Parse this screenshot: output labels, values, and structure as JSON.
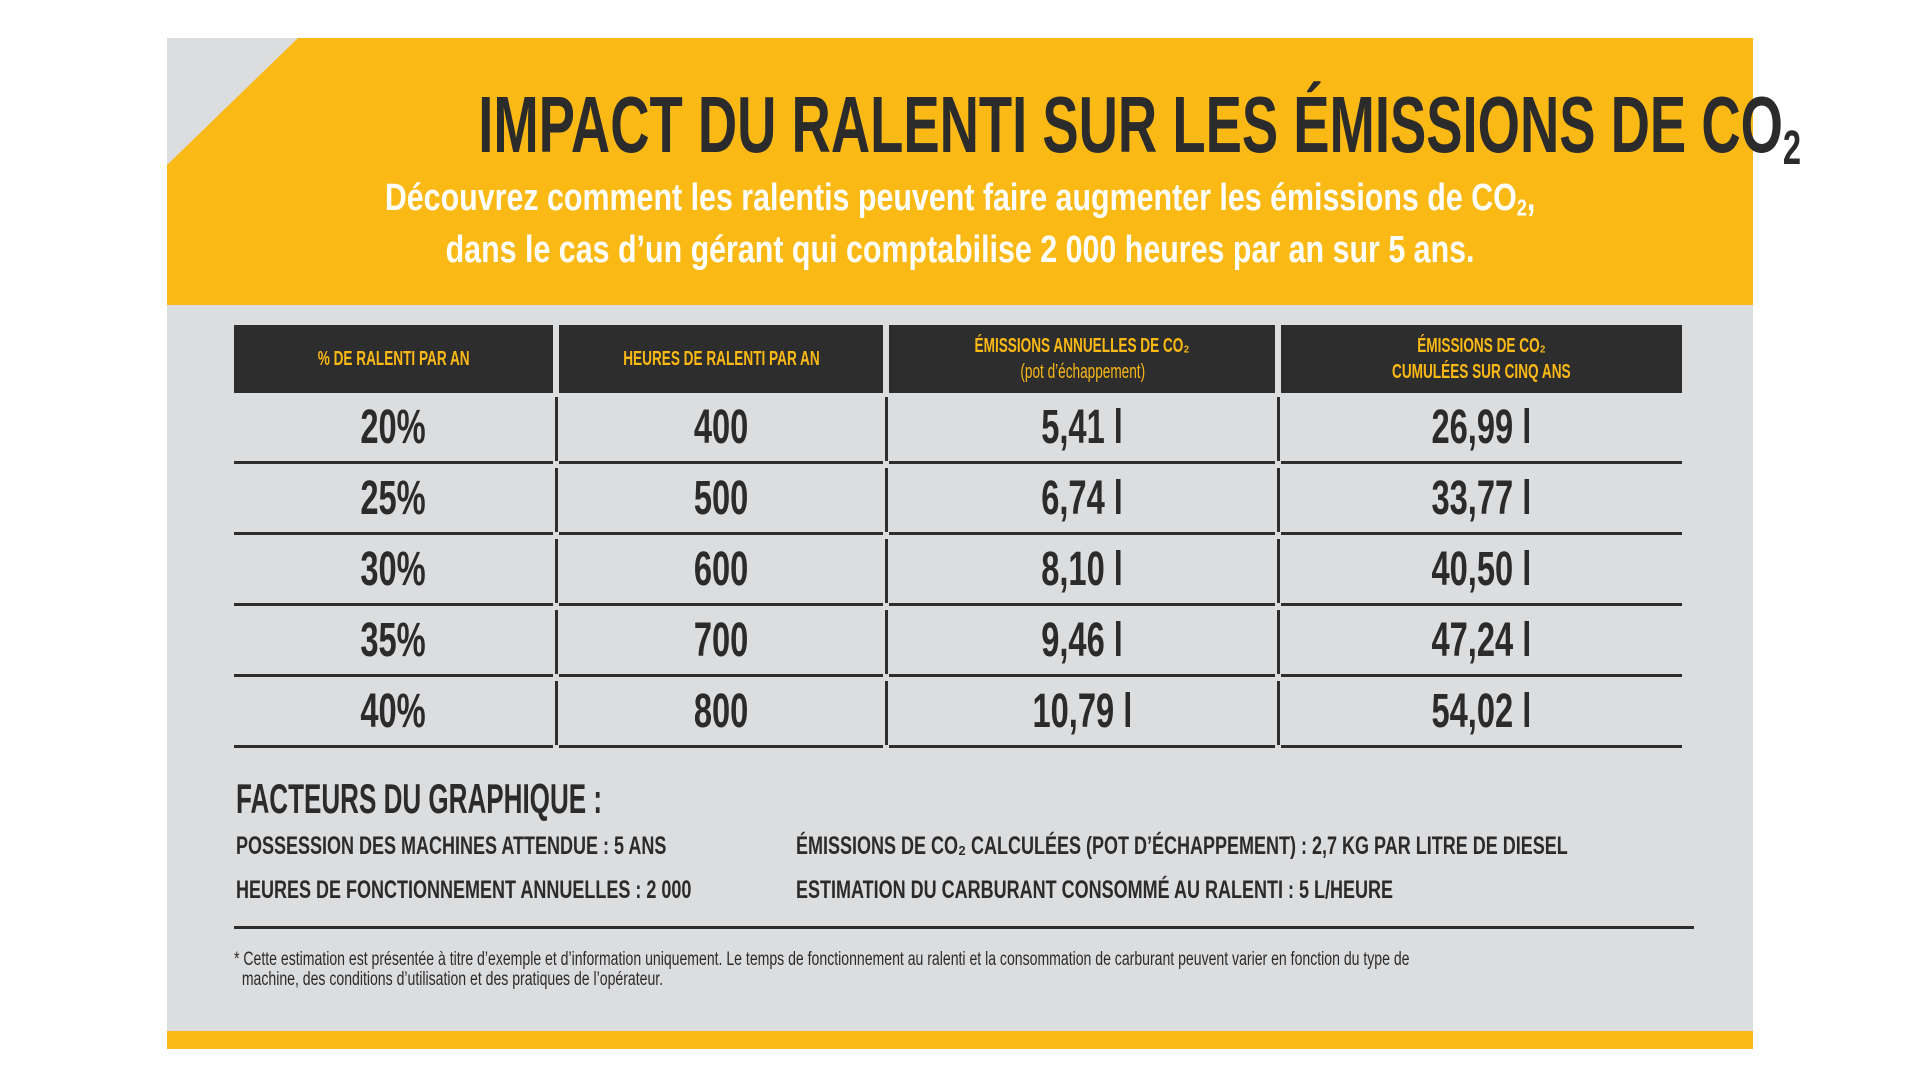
{
  "title": {
    "main": "IMPACT DU RALENTI SUR LES ÉMISSIONS DE CO",
    "sub_2": "2"
  },
  "subtitle": {
    "line1": "Découvrez comment les ralentis peuvent faire augmenter les émissions de CO",
    "line1_sub": "2",
    "line1_end": ",",
    "line2": "dans le cas d’un gérant qui comptabilise 2 000 heures par an sur 5 ans."
  },
  "table": {
    "headers": [
      {
        "line1": "% DE RALENTI PAR AN",
        "line2": ""
      },
      {
        "line1": "HEURES DE RALENTI PAR AN",
        "line2": ""
      },
      {
        "line1": "ÉMISSIONS ANNUELLES DE CO₂",
        "line2": "(pot d’échappement)"
      },
      {
        "line1": "ÉMISSIONS DE CO₂",
        "line2": "CUMULÉES SUR CINQ ANS"
      }
    ],
    "rows": [
      [
        "20%",
        "400",
        "5,41 l",
        "26,99 l"
      ],
      [
        "25%",
        "500",
        "6,74 l",
        "33,77 l"
      ],
      [
        "30%",
        "600",
        "8,10 l",
        "40,50 l"
      ],
      [
        "35%",
        "700",
        "9,46 l",
        "47,24 l"
      ],
      [
        "40%",
        "800",
        "10,79 l",
        "54,02 l"
      ]
    ]
  },
  "factors": {
    "heading": "FACTEURS DU GRAPHIQUE :",
    "items": [
      "POSSESSION DES MACHINES ATTENDUE : 5 ANS",
      "ÉMISSIONS DE CO₂ CALCULÉES (POT D’ÉCHAPPEMENT) : 2,7 KG PAR LITRE DE DIESEL",
      "HEURES DE FONCTIONNEMENT ANNUELLES : 2 000",
      "ESTIMATION DU CARBURANT CONSOMMÉ AU RALENTI : 5 L/HEURE"
    ]
  },
  "footnote": {
    "line1": "* Cette estimation est présentée à titre d’exemple et d’information uniquement. Le temps de fonctionnement au ralenti et la consommation de carburant peuvent varier en fonction du type de",
    "line2": "machine, des conditions d’utilisation et des pratiques de l’opérateur."
  },
  "colors": {
    "accent": "#fbb916",
    "dark": "#2d2d2d",
    "panel": "#dcdddf"
  }
}
